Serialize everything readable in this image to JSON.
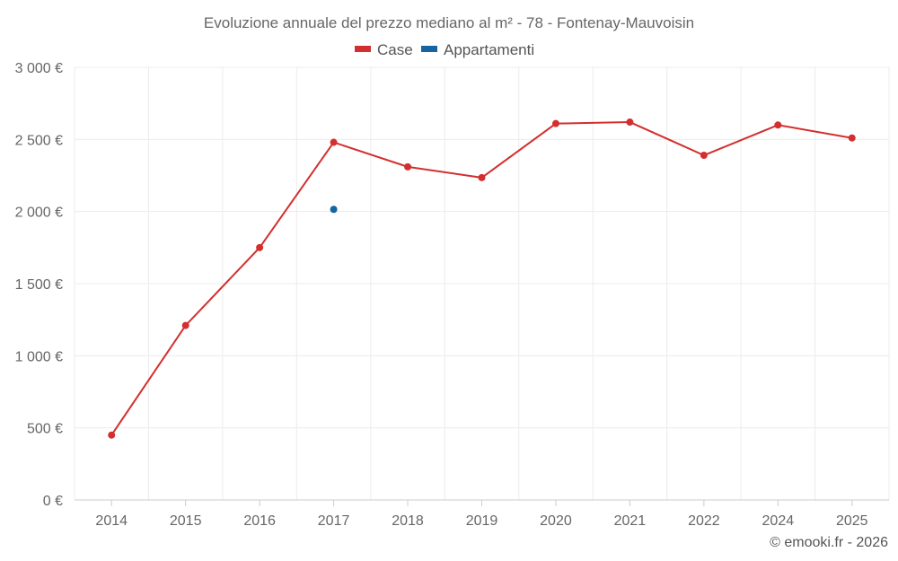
{
  "chart_data": {
    "type": "line",
    "title": "Evoluzione annuale del prezzo mediano al m² - 78 - Fontenay-Mauvoisin",
    "categories": [
      "2014",
      "2015",
      "2016",
      "2017",
      "2018",
      "2019",
      "2020",
      "2021",
      "2022",
      "2024",
      "2025"
    ],
    "ylim": [
      0,
      3000
    ],
    "y_ticks": [
      0,
      500,
      1000,
      1500,
      2000,
      2500,
      3000
    ],
    "y_tick_labels": [
      "0 €",
      "500 €",
      "1 000 €",
      "1 500 €",
      "2 000 €",
      "2 500 €",
      "3 000 €"
    ],
    "grid": true,
    "legend_position": "top-center",
    "series": [
      {
        "name": "Case",
        "color": "#d32f2f",
        "values": [
          450,
          1210,
          1750,
          2480,
          2310,
          2235,
          2610,
          2620,
          2390,
          2600,
          2510
        ]
      },
      {
        "name": "Appartamenti",
        "color": "#1565a0",
        "values": [
          null,
          null,
          null,
          2015,
          null,
          null,
          null,
          null,
          null,
          null,
          null
        ]
      }
    ]
  },
  "credit": "© emooki.fr - 2026"
}
